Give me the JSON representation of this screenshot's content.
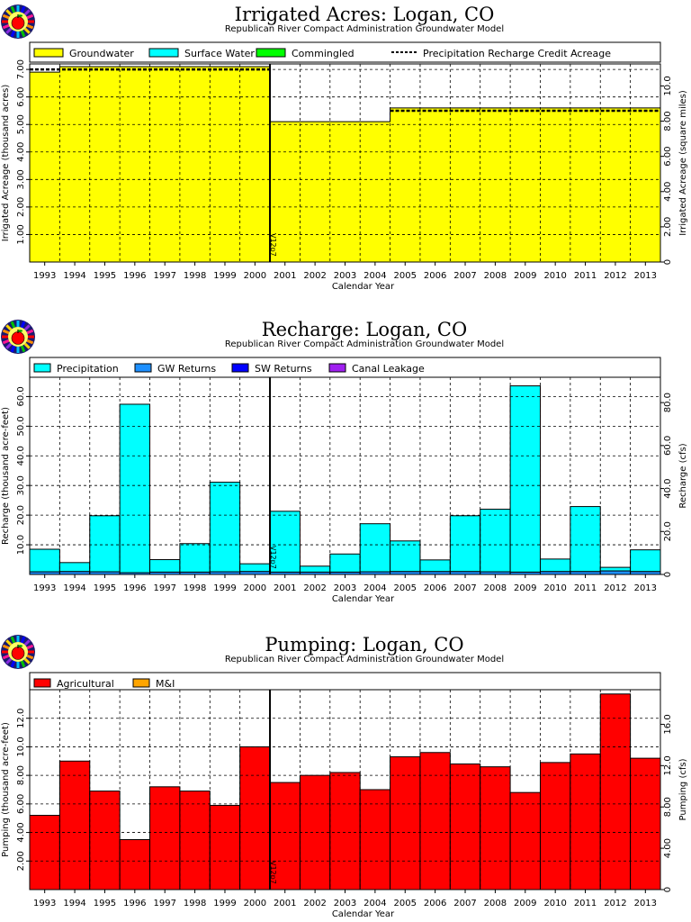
{
  "chart_data": [
    {
      "type": "area",
      "title": "Irrigated Acres: Logan, CO",
      "subtitle": "Republican River Compact Administration Groundwater Model",
      "xlabel": "Calendar Year",
      "ylabel": "Irrigated Acreage (thousand acres)",
      "y2label": "Irrigated Acreage (square miles)",
      "categories": [
        "1993",
        "1994",
        "1995",
        "1996",
        "1997",
        "1998",
        "1999",
        "2000",
        "2001",
        "2002",
        "2003",
        "2004",
        "2005",
        "2006",
        "2007",
        "2008",
        "2009",
        "2010",
        "2011",
        "2012",
        "2013"
      ],
      "ylim": [
        0,
        7.2
      ],
      "yticks": [
        "1.00",
        "2.00",
        "3.00",
        "4.00",
        "5.00",
        "6.00",
        "7.00"
      ],
      "y2lim": [
        0,
        11.25
      ],
      "y2ticks": [
        "0",
        "2.00",
        "4.00",
        "6.00",
        "8.00",
        "10.0"
      ],
      "marker_label": "V12p7",
      "marker_year": "2001",
      "legend": [
        {
          "name": "Groundwater",
          "color": "#ffff00",
          "style": "box"
        },
        {
          "name": "Surface Water",
          "color": "#00ffff",
          "style": "box"
        },
        {
          "name": "Commingled",
          "color": "#00ff00",
          "style": "box"
        },
        {
          "name": "Precipitation Recharge Credit Acreage",
          "color": "#000000",
          "style": "dash"
        }
      ],
      "series": [
        {
          "name": "Groundwater",
          "color": "#ffff00",
          "values": [
            6.9,
            7.1,
            7.1,
            7.1,
            7.1,
            7.1,
            7.1,
            7.1,
            5.1,
            5.1,
            5.1,
            5.1,
            5.6,
            5.6,
            5.6,
            5.6,
            5.6,
            5.6,
            5.6,
            5.6,
            5.6
          ]
        },
        {
          "name": "Surface Water",
          "color": "#00ffff",
          "values": [
            0,
            0,
            0,
            0,
            0,
            0,
            0,
            0,
            0,
            0,
            0,
            0,
            0,
            0,
            0,
            0,
            0,
            0,
            0,
            0,
            0
          ]
        },
        {
          "name": "Commingled",
          "color": "#00ff00",
          "values": [
            0,
            0,
            0,
            0,
            0,
            0,
            0,
            0,
            0,
            0,
            0,
            0,
            0,
            0,
            0,
            0,
            0,
            0,
            0,
            0,
            0
          ]
        },
        {
          "name": "Precipitation Recharge Credit Acreage",
          "color": "#000000",
          "line": true,
          "values": [
            7.0,
            7.0,
            7.0,
            7.0,
            7.0,
            7.0,
            7.0,
            7.0,
            null,
            null,
            null,
            null,
            5.5,
            5.5,
            5.5,
            5.5,
            5.5,
            5.5,
            5.5,
            5.5,
            5.5
          ]
        }
      ]
    },
    {
      "type": "bar",
      "title": "Recharge: Logan, CO",
      "subtitle": "Republican River Compact Administration Groundwater Model",
      "xlabel": "Calendar Year",
      "ylabel": "Recharge (thousand acre-feet)",
      "y2label": "Recharge (cfs)",
      "categories": [
        "1993",
        "1994",
        "1995",
        "1996",
        "1997",
        "1998",
        "1999",
        "2000",
        "2001",
        "2002",
        "2003",
        "2004",
        "2005",
        "2006",
        "2007",
        "2008",
        "2009",
        "2010",
        "2011",
        "2012",
        "2013"
      ],
      "ylim": [
        0,
        66.5
      ],
      "yticks": [
        "10.0",
        "20.0",
        "30.0",
        "40.0",
        "50.0",
        "60.0"
      ],
      "y2lim": [
        0,
        91.8
      ],
      "y2ticks": [
        "0",
        "20.0",
        "40.0",
        "60.0",
        "80.0"
      ],
      "marker_label": "V12p7",
      "marker_year": "2001",
      "legend": [
        {
          "name": "Precipitation",
          "color": "#00ffff",
          "style": "box"
        },
        {
          "name": "GW Returns",
          "color": "#1e90ff",
          "style": "box"
        },
        {
          "name": "SW Returns",
          "color": "#0000ff",
          "style": "box"
        },
        {
          "name": "Canal Leakage",
          "color": "#a020f0",
          "style": "box"
        }
      ],
      "series": [
        {
          "name": "GW Returns",
          "color": "#1e90ff",
          "values": [
            0.9,
            1.0,
            0.9,
            0.6,
            0.8,
            0.8,
            0.9,
            1.0,
            0.8,
            0.8,
            0.8,
            0.9,
            1.0,
            1.0,
            1.0,
            0.9,
            0.8,
            1.0,
            1.0,
            1.2,
            1.0
          ]
        },
        {
          "name": "SW Returns",
          "color": "#0000ff",
          "values": [
            0,
            0,
            0,
            0,
            0,
            0,
            0,
            0,
            0,
            0,
            0,
            0,
            0,
            0,
            0,
            0,
            0,
            0,
            0,
            0,
            0
          ]
        },
        {
          "name": "Canal Leakage",
          "color": "#a020f0",
          "values": [
            0,
            0,
            0,
            0,
            0,
            0,
            0,
            0,
            0,
            0,
            0,
            0,
            0,
            0,
            0,
            0,
            0,
            0,
            0,
            0,
            0
          ]
        },
        {
          "name": "Precipitation",
          "color": "#00ffff",
          "values": [
            7.6,
            3.0,
            18.9,
            56.8,
            4.2,
            9.6,
            30.2,
            2.6,
            20.5,
            2.0,
            6.1,
            16.2,
            10.3,
            3.9,
            18.8,
            21.1,
            62.8,
            4.2,
            21.9,
            1.2,
            7.3
          ]
        }
      ]
    },
    {
      "type": "bar",
      "title": "Pumping: Logan, CO",
      "subtitle": "Republican River Compact Administration Groundwater Model",
      "xlabel": "Calendar Year",
      "ylabel": "Pumping (thousand acre-feet)",
      "y2label": "Pumping (cfs)",
      "categories": [
        "1993",
        "1994",
        "1995",
        "1996",
        "1997",
        "1998",
        "1999",
        "2000",
        "2001",
        "2002",
        "2003",
        "2004",
        "2005",
        "2006",
        "2007",
        "2008",
        "2009",
        "2010",
        "2011",
        "2012",
        "2013"
      ],
      "ylim": [
        0,
        14.0
      ],
      "yticks": [
        "2.00",
        "4.00",
        "6.00",
        "8.00",
        "10.0",
        "12.0"
      ],
      "y2lim": [
        0,
        19.35
      ],
      "y2ticks": [
        "0",
        "4.00",
        "8.00",
        "12.0",
        "16.0"
      ],
      "marker_label": "V12p7",
      "marker_year": "2001",
      "legend": [
        {
          "name": "Agricultural",
          "color": "#ff0000",
          "style": "box"
        },
        {
          "name": "M&I",
          "color": "#ffa500",
          "style": "box"
        }
      ],
      "series": [
        {
          "name": "Agricultural",
          "color": "#ff0000",
          "values": [
            5.2,
            9.0,
            6.9,
            3.5,
            7.2,
            6.9,
            5.9,
            10.0,
            7.5,
            8.0,
            8.2,
            7.0,
            9.3,
            9.6,
            8.8,
            8.6,
            6.8,
            8.9,
            9.5,
            13.7,
            9.2
          ]
        },
        {
          "name": "M&I",
          "color": "#ffa500",
          "values": [
            0,
            0,
            0,
            0,
            0,
            0,
            0,
            0,
            0,
            0,
            0,
            0,
            0,
            0,
            0,
            0,
            0,
            0,
            0,
            0,
            0
          ]
        }
      ]
    }
  ]
}
